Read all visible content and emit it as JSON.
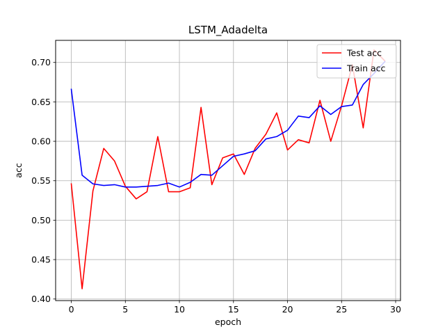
{
  "chart_data": {
    "type": "line",
    "title": "LSTM_Adadelta",
    "xlabel": "epoch",
    "ylabel": "acc",
    "xlim": [
      -1.45,
      30.45
    ],
    "ylim": [
      0.398,
      0.728
    ],
    "xticks": [
      0,
      5,
      10,
      15,
      20,
      25,
      30
    ],
    "yticks": [
      0.4,
      0.45,
      0.5,
      0.55,
      0.6,
      0.65,
      0.7
    ],
    "xtick_labels": [
      "0",
      "5",
      "10",
      "15",
      "20",
      "25",
      "30"
    ],
    "ytick_labels": [
      "0.40",
      "0.45",
      "0.50",
      "0.55",
      "0.60",
      "0.65",
      "0.70"
    ],
    "grid": true,
    "legend_position": "top-right",
    "x": [
      0,
      1,
      2,
      3,
      4,
      5,
      6,
      7,
      8,
      9,
      10,
      11,
      12,
      13,
      14,
      15,
      16,
      17,
      18,
      19,
      20,
      21,
      22,
      23,
      24,
      25,
      26,
      27,
      28,
      29
    ],
    "series": [
      {
        "name": "Test acc",
        "color": "#ff0000",
        "values": [
          0.546,
          0.413,
          0.537,
          0.591,
          0.575,
          0.543,
          0.527,
          0.536,
          0.606,
          0.536,
          0.536,
          0.541,
          0.643,
          0.545,
          0.579,
          0.584,
          0.558,
          0.591,
          0.609,
          0.636,
          0.589,
          0.602,
          0.598,
          0.652,
          0.6,
          0.645,
          0.697,
          0.617,
          0.716,
          0.702
        ]
      },
      {
        "name": "Train acc",
        "color": "#0000ff",
        "values": [
          0.666,
          0.557,
          0.546,
          0.544,
          0.545,
          0.542,
          0.542,
          0.543,
          0.544,
          0.547,
          0.542,
          0.548,
          0.558,
          0.557,
          0.569,
          0.581,
          0.584,
          0.588,
          0.603,
          0.606,
          0.614,
          0.632,
          0.63,
          0.645,
          0.634,
          0.644,
          0.646,
          0.672,
          0.686,
          0.701
        ]
      }
    ]
  }
}
